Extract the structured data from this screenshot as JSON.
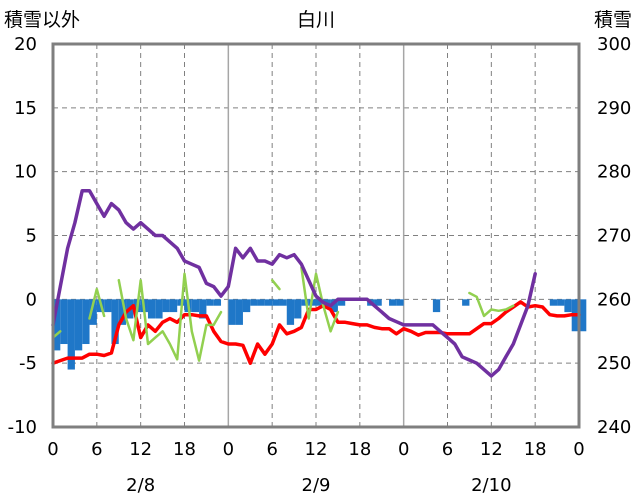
{
  "chart_data": {
    "type": "line",
    "title": "白川",
    "left_axis_label": "積雪以外",
    "right_axis_label": "積雪",
    "left_ylim": [
      -10,
      20
    ],
    "left_ticks": [
      "20",
      "15",
      "10",
      "5",
      "0",
      "-5",
      "-10"
    ],
    "right_ylim": [
      240,
      300
    ],
    "right_ticks": [
      "300",
      "290",
      "280",
      "270",
      "260",
      "250",
      "240"
    ],
    "x_range": [
      0,
      72
    ],
    "x_tick_labels": [
      "0",
      "6",
      "12",
      "18",
      "0",
      "6",
      "12",
      "18",
      "0",
      "6",
      "12",
      "18",
      "0"
    ],
    "day_labels": [
      "2/8",
      "2/9",
      "2/10"
    ],
    "grid": true,
    "colors": {
      "precipitation": "#1F77C8",
      "temperature": "#FF0000",
      "wind": "#92D050",
      "snow_depth": "#7030A0"
    },
    "precipitation": [
      {
        "x": 0,
        "y": -4
      },
      {
        "x": 1,
        "y": -3.5
      },
      {
        "x": 2,
        "y": -5.5
      },
      {
        "x": 3,
        "y": -4
      },
      {
        "x": 4,
        "y": -3.5
      },
      {
        "x": 5,
        "y": -2
      },
      {
        "x": 6,
        "y": -1
      },
      {
        "x": 7,
        "y": -1
      },
      {
        "x": 8,
        "y": -3.5
      },
      {
        "x": 9,
        "y": -2
      },
      {
        "x": 10,
        "y": -1.5
      },
      {
        "x": 11,
        "y": -1
      },
      {
        "x": 12,
        "y": -1
      },
      {
        "x": 13,
        "y": -1.5
      },
      {
        "x": 14,
        "y": -1.5
      },
      {
        "x": 15,
        "y": -1
      },
      {
        "x": 16,
        "y": -1
      },
      {
        "x": 17,
        "y": -0.5
      },
      {
        "x": 18,
        "y": -1
      },
      {
        "x": 19,
        "y": -1
      },
      {
        "x": 20,
        "y": -1.5
      },
      {
        "x": 21,
        "y": -0.5
      },
      {
        "x": 22,
        "y": -0.5
      },
      {
        "x": 24,
        "y": -2
      },
      {
        "x": 25,
        "y": -2
      },
      {
        "x": 26,
        "y": -1
      },
      {
        "x": 27,
        "y": -0.5
      },
      {
        "x": 28,
        "y": -0.5
      },
      {
        "x": 29,
        "y": -0.5
      },
      {
        "x": 30,
        "y": -0.5
      },
      {
        "x": 31,
        "y": -0.5
      },
      {
        "x": 32,
        "y": -2
      },
      {
        "x": 33,
        "y": -1.5
      },
      {
        "x": 34,
        "y": -0.5
      },
      {
        "x": 35,
        "y": -0.5
      },
      {
        "x": 36,
        "y": -0.5
      },
      {
        "x": 37,
        "y": -0.5
      },
      {
        "x": 38,
        "y": -1
      },
      {
        "x": 39,
        "y": -0.5
      },
      {
        "x": 43,
        "y": -0.5
      },
      {
        "x": 44,
        "y": -0.5
      },
      {
        "x": 46,
        "y": -0.5
      },
      {
        "x": 47,
        "y": -0.5
      },
      {
        "x": 52,
        "y": -1
      },
      {
        "x": 56,
        "y": -0.5
      },
      {
        "x": 68,
        "y": -0.5
      },
      {
        "x": 69,
        "y": -0.5
      },
      {
        "x": 70,
        "y": -1
      },
      {
        "x": 71,
        "y": -2.5
      },
      {
        "x": 72,
        "y": -2.5
      }
    ],
    "series": [
      {
        "key": "temperature",
        "values": [
          [
            0,
            -5
          ],
          [
            1,
            -4.8
          ],
          [
            2,
            -4.6
          ],
          [
            3,
            -4.6
          ],
          [
            4,
            -4.6
          ],
          [
            5,
            -4.3
          ],
          [
            6,
            -4.3
          ],
          [
            7,
            -4.4
          ],
          [
            8,
            -4.2
          ],
          [
            9,
            -2
          ],
          [
            10,
            -1
          ],
          [
            11,
            -0.5
          ],
          [
            12,
            -3
          ],
          [
            13,
            -2
          ],
          [
            14,
            -2.5
          ],
          [
            15,
            -1.8
          ],
          [
            16,
            -1.5
          ],
          [
            17,
            -1.8
          ],
          [
            18,
            -1.2
          ],
          [
            19,
            -1.2
          ],
          [
            20,
            -1.3
          ],
          [
            21,
            -1.3
          ],
          [
            22,
            -2.5
          ],
          [
            23,
            -3.3
          ],
          [
            24,
            -3.5
          ],
          [
            25,
            -3.5
          ],
          [
            26,
            -3.6
          ],
          [
            27,
            -5
          ],
          [
            28,
            -3.5
          ],
          [
            29,
            -4.3
          ],
          [
            30,
            -3.5
          ],
          [
            31,
            -2
          ],
          [
            32,
            -2.7
          ],
          [
            33,
            -2.5
          ],
          [
            34,
            -2.2
          ],
          [
            35,
            -0.8
          ],
          [
            36,
            -0.8
          ],
          [
            37,
            -0.5
          ],
          [
            38,
            -0.8
          ],
          [
            39,
            -1.8
          ],
          [
            40,
            -1.8
          ],
          [
            41,
            -1.9
          ],
          [
            42,
            -2
          ],
          [
            43,
            -2
          ],
          [
            44,
            -2.2
          ],
          [
            45,
            -2.3
          ],
          [
            46,
            -2.3
          ],
          [
            47,
            -2.7
          ],
          [
            48,
            -2.3
          ],
          [
            49,
            -2.5
          ],
          [
            50,
            -2.8
          ],
          [
            51,
            -2.6
          ],
          [
            52,
            -2.6
          ],
          [
            53,
            -2.6
          ],
          [
            54,
            -2.7
          ],
          [
            55,
            -2.7
          ],
          [
            56,
            -2.7
          ],
          [
            57,
            -2.7
          ],
          [
            58,
            -2.3
          ],
          [
            59,
            -1.9
          ],
          [
            60,
            -1.9
          ],
          [
            61,
            -1.5
          ],
          [
            62,
            -1
          ],
          [
            63,
            -0.6
          ],
          [
            64,
            -0.2
          ],
          [
            65,
            -0.6
          ],
          [
            66,
            -0.5
          ],
          [
            67,
            -0.6
          ],
          [
            68,
            -1.2
          ],
          [
            69,
            -1.3
          ],
          [
            70,
            -1.3
          ],
          [
            71,
            -1.2
          ],
          [
            72,
            -1.2
          ]
        ]
      },
      {
        "key": "wind",
        "values": [
          [
            0,
            -3
          ],
          [
            1,
            -2.5
          ],
          [
            2,
            null
          ],
          [
            3,
            null
          ],
          [
            4,
            null
          ],
          [
            5,
            -1.5
          ],
          [
            6,
            0.8
          ],
          [
            7,
            -1.3
          ],
          [
            8,
            null
          ],
          [
            9,
            1.5
          ],
          [
            10,
            -1.5
          ],
          [
            11,
            -3.2
          ],
          [
            12,
            1.5
          ],
          [
            13,
            -3.5
          ],
          [
            14,
            -3
          ],
          [
            15,
            -2.5
          ],
          [
            16,
            -3.5
          ],
          [
            17,
            -4.7
          ],
          [
            18,
            2
          ],
          [
            19,
            -2.5
          ],
          [
            20,
            -4.8
          ],
          [
            21,
            -2
          ],
          [
            22,
            -2
          ],
          [
            23,
            -1
          ],
          [
            24,
            null
          ],
          [
            25,
            null
          ],
          [
            26,
            null
          ],
          [
            27,
            null
          ],
          [
            28,
            null
          ],
          [
            29,
            null
          ],
          [
            30,
            1.5
          ],
          [
            31,
            0.8
          ],
          [
            32,
            null
          ],
          [
            33,
            null
          ],
          [
            34,
            2.5
          ],
          [
            35,
            -1.5
          ],
          [
            36,
            2
          ],
          [
            37,
            -0.5
          ],
          [
            38,
            -2.5
          ],
          [
            39,
            -1
          ],
          [
            40,
            null
          ],
          [
            56,
            null
          ],
          [
            57,
            0.5
          ],
          [
            58,
            0.2
          ],
          [
            59,
            -1.3
          ],
          [
            60,
            -0.8
          ],
          [
            61,
            -0.9
          ],
          [
            62,
            -0.8
          ],
          [
            63,
            -0.5
          ],
          [
            64,
            null
          ]
        ]
      },
      {
        "key": "snow_depth",
        "values": [
          [
            0,
            256
          ],
          [
            1,
            262
          ],
          [
            2,
            268
          ],
          [
            3,
            272
          ],
          [
            4,
            277
          ],
          [
            5,
            277
          ],
          [
            6,
            275
          ],
          [
            7,
            273
          ],
          [
            8,
            275
          ],
          [
            9,
            274
          ],
          [
            10,
            272
          ],
          [
            11,
            271
          ],
          [
            12,
            272
          ],
          [
            13,
            271
          ],
          [
            14,
            270
          ],
          [
            15,
            270
          ],
          [
            16,
            269
          ],
          [
            17,
            268
          ],
          [
            18,
            266
          ],
          [
            19,
            265.5
          ],
          [
            20,
            265
          ],
          [
            21,
            262.5
          ],
          [
            22,
            262
          ],
          [
            23,
            260.5
          ],
          [
            24,
            262
          ],
          [
            25,
            268
          ],
          [
            26,
            266.5
          ],
          [
            27,
            268
          ],
          [
            28,
            266
          ],
          [
            29,
            266
          ],
          [
            30,
            265.5
          ],
          [
            31,
            267
          ],
          [
            32,
            266.5
          ],
          [
            33,
            267
          ],
          [
            34,
            265.5
          ],
          [
            35,
            263
          ],
          [
            36,
            260.5
          ],
          [
            37,
            259.5
          ],
          [
            38,
            259
          ],
          [
            39,
            260
          ],
          [
            40,
            260
          ],
          [
            41,
            260
          ],
          [
            42,
            260
          ],
          [
            43,
            260
          ],
          [
            44,
            259
          ],
          [
            45,
            258
          ],
          [
            46,
            257
          ],
          [
            47,
            256.5
          ],
          [
            48,
            256
          ],
          [
            49,
            256
          ],
          [
            50,
            256
          ],
          [
            51,
            256
          ],
          [
            52,
            256
          ],
          [
            53,
            255
          ],
          [
            54,
            254
          ],
          [
            55,
            253
          ],
          [
            56,
            251
          ],
          [
            57,
            250.5
          ],
          [
            58,
            250
          ],
          [
            59,
            249
          ],
          [
            60,
            248
          ],
          [
            61,
            249
          ],
          [
            62,
            251
          ],
          [
            63,
            253
          ],
          [
            64,
            256
          ],
          [
            65,
            259
          ],
          [
            66,
            264
          ]
        ]
      }
    ]
  }
}
